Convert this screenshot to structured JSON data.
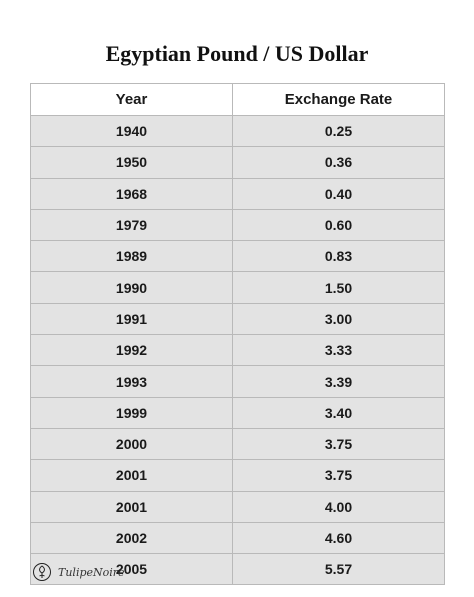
{
  "title": "Egyptian Pound / US Dollar",
  "table": {
    "headers": [
      "Year",
      "Exchange Rate"
    ],
    "rows": [
      [
        "1940",
        "0.25"
      ],
      [
        "1950",
        "0.36"
      ],
      [
        "1968",
        "0.40"
      ],
      [
        "1979",
        "0.60"
      ],
      [
        "1989",
        "0.83"
      ],
      [
        "1990",
        "1.50"
      ],
      [
        "1991",
        "3.00"
      ],
      [
        "1992",
        "3.33"
      ],
      [
        "1993",
        "3.39"
      ],
      [
        "1999",
        "3.40"
      ],
      [
        "2000",
        "3.75"
      ],
      [
        "2001",
        "3.75"
      ],
      [
        "2001",
        "4.00"
      ],
      [
        "2002",
        "4.60"
      ],
      [
        "2005",
        "5.57"
      ]
    ]
  },
  "watermark": {
    "text": "TulipeNoire",
    "icon": "tulip-logo-icon"
  }
}
